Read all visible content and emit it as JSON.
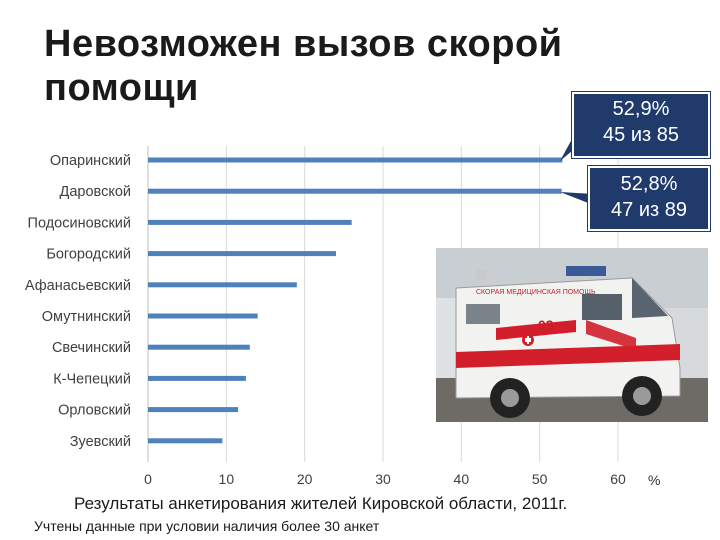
{
  "title": "Невозможен вызов скорой помощи",
  "callouts": [
    {
      "pct": "52,9%",
      "count": "45 из 85"
    },
    {
      "pct": "52,8%",
      "count": "47 из 89"
    }
  ],
  "caption": "Результаты анкетирования жителей Кировской области, 2011г.",
  "note": "Учтены данные при условии наличия более 30 анкет",
  "ambulance": {
    "brand_text": "СКОРАЯ МЕДИЦИНСКАЯ ПОМОЩЬ",
    "number": "03"
  },
  "colors": {
    "bar": "#4f81bd",
    "callout": "#1f3a6b",
    "grid": "#d9d9d9"
  },
  "chart_data": {
    "type": "bar",
    "orientation": "horizontal",
    "categories": [
      "Опаринский",
      "Даровской",
      "Подосиновский",
      "Богородский",
      "Афанасьевский",
      "Омутнинский",
      "Свечинский",
      "К-Чепецкий",
      "Орловский",
      "Зуевский"
    ],
    "values": [
      52.9,
      52.8,
      26,
      24,
      19,
      14,
      13,
      12.5,
      11.5,
      9.5
    ],
    "xlim": [
      0,
      60
    ],
    "xticks": [
      0,
      10,
      20,
      30,
      40,
      50,
      60
    ],
    "unit": "%",
    "grid": true
  }
}
